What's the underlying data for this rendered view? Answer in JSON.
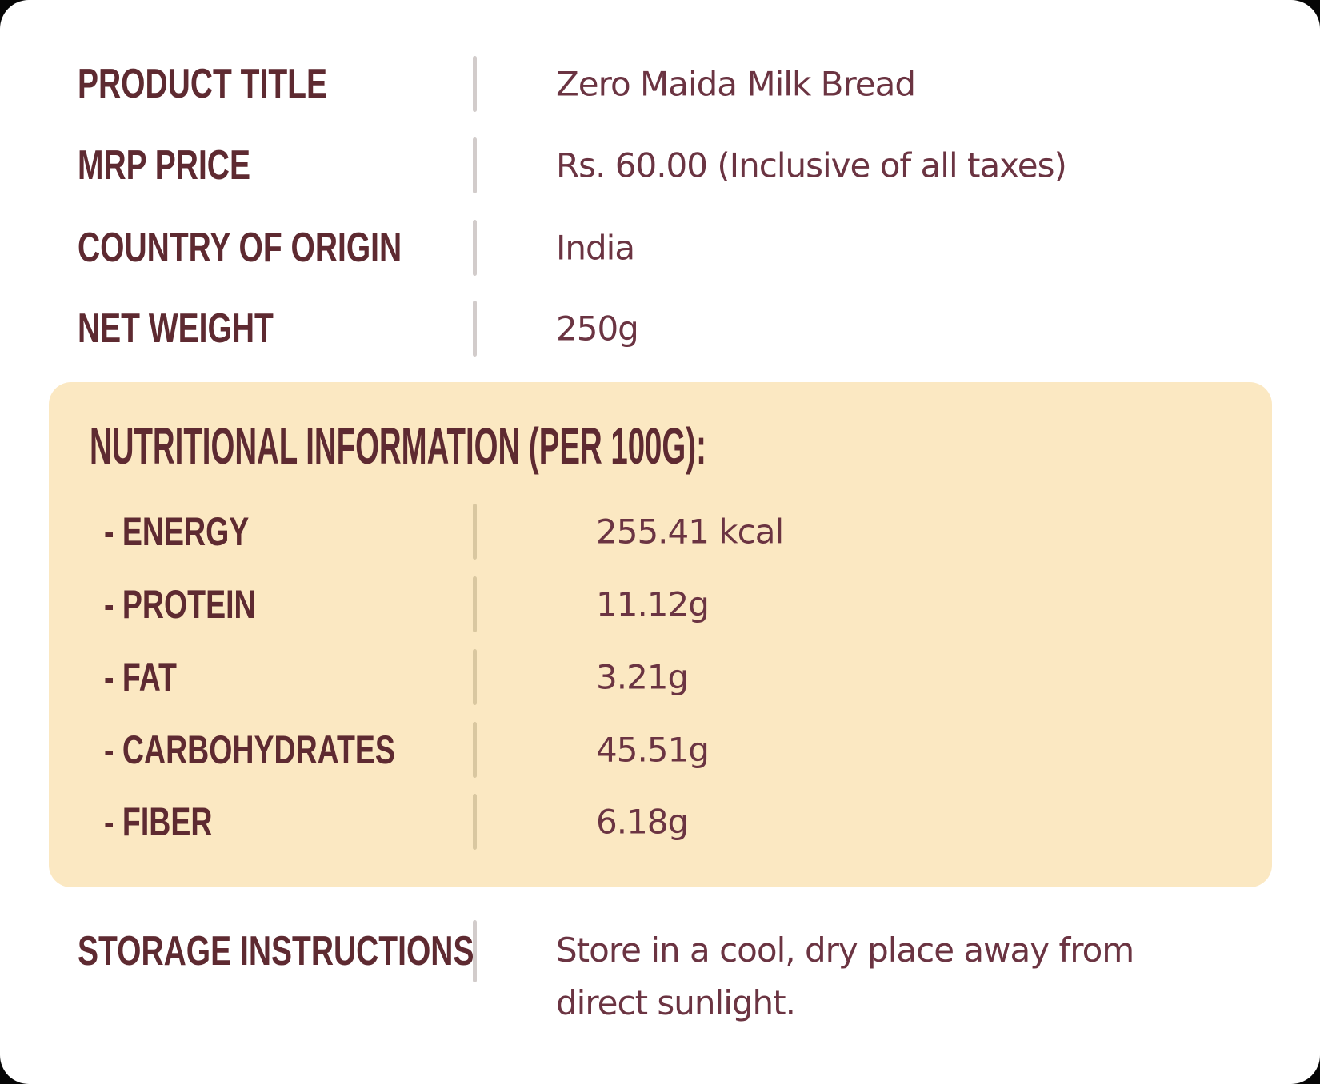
{
  "colors": {
    "card_background": "#ffffff",
    "outer_background": "#060606",
    "label_maroon": "#5e2a31",
    "value_burgundy": "#6b3442",
    "nutrition_box_cream": "#fbe8c2",
    "divider_gray": "#d2cccb",
    "divider_tan": "#d9c7a0"
  },
  "product_info": {
    "rows": [
      {
        "label": "PRODUCT TITLE",
        "value": "Zero Maida Milk Bread"
      },
      {
        "label": "MRP PRICE",
        "value": "Rs. 60.00 (Inclusive of all taxes)"
      },
      {
        "label": "COUNTRY OF ORIGIN",
        "value": "India"
      },
      {
        "label": "NET WEIGHT",
        "value": "250g"
      }
    ]
  },
  "nutrition": {
    "heading": "NUTRITIONAL INFORMATION (PER 100G):",
    "rows": [
      {
        "label": "- ENERGY",
        "value": "255.41 kcal"
      },
      {
        "label": "- PROTEIN",
        "value": "11.12g"
      },
      {
        "label": "- FAT",
        "value": "3.21g"
      },
      {
        "label": "- CARBOHYDRATES",
        "value": "45.51g"
      },
      {
        "label": "- FIBER",
        "value": "6.18g"
      }
    ]
  },
  "storage": {
    "label": "STORAGE INSTRUCTIONS",
    "value": "Store in a cool, dry place away from direct sunlight."
  }
}
